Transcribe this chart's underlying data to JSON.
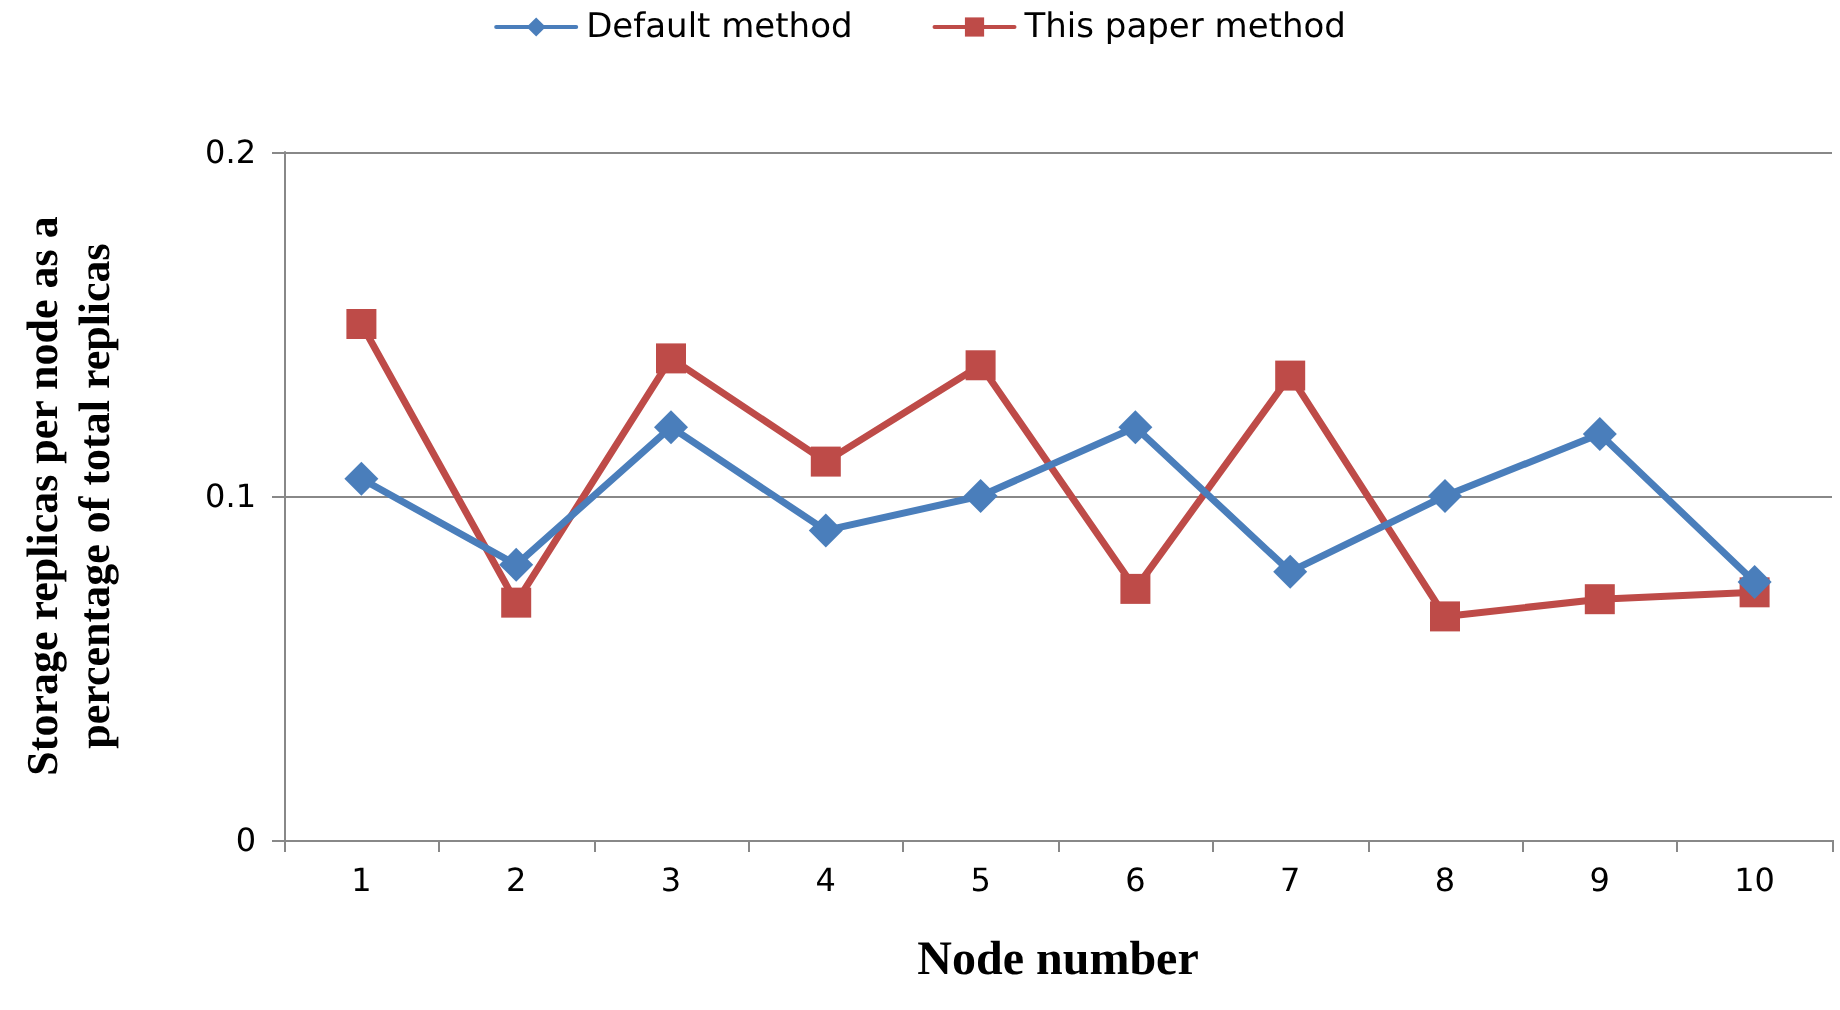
{
  "chart_data": {
    "type": "line",
    "xlabel": "Node number",
    "ylabel": "Storage replicas per node as a\npercentage of total replicas",
    "categories": [
      "1",
      "2",
      "3",
      "4",
      "5",
      "6",
      "7",
      "8",
      "9",
      "10"
    ],
    "series": [
      {
        "name": "Default method",
        "color": "#4a7ebb",
        "marker": "diamond",
        "values": [
          0.105,
          0.08,
          0.12,
          0.09,
          0.1,
          0.12,
          0.078,
          0.1,
          0.118,
          0.075
        ]
      },
      {
        "name": "This paper method",
        "color": "#be4b48",
        "marker": "square",
        "values": [
          0.15,
          0.069,
          0.14,
          0.11,
          0.138,
          0.073,
          0.135,
          0.065,
          0.07,
          0.072
        ]
      }
    ],
    "ylim": [
      0,
      0.2
    ],
    "yticks": [
      0,
      0.1,
      0.2
    ],
    "grid": "y",
    "legend": "top",
    "line_style": "solid"
  }
}
